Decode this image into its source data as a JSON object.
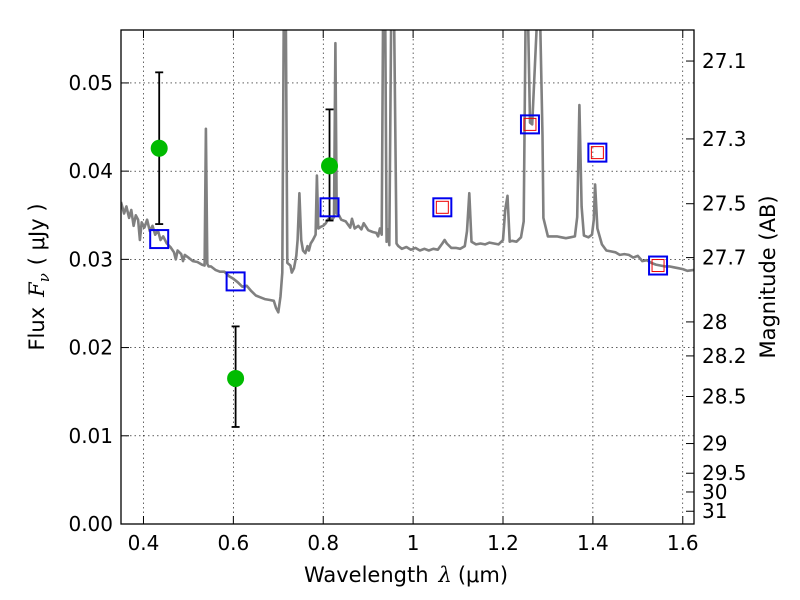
{
  "chart_data": {
    "type": "line",
    "xlabel": "Wavelength",
    "xlabel_symbol": "λ",
    "xlabel_unit": "(μm)",
    "ylabel": "Flux",
    "ylabel_symbol": "F",
    "ylabel_subscript": "ν",
    "ylabel_unit": "( μJy )",
    "y2label": "Magnitude (AB)",
    "xlim": [
      0.35,
      1.625
    ],
    "ylim": [
      0.0,
      0.056
    ],
    "grid": true,
    "x_ticks": [
      {
        "v": 0.4,
        "label": "0.4"
      },
      {
        "v": 0.6,
        "label": "0.6"
      },
      {
        "v": 0.8,
        "label": "0.8"
      },
      {
        "v": 1.0,
        "label": "1"
      },
      {
        "v": 1.2,
        "label": "1.2"
      },
      {
        "v": 1.4,
        "label": "1.4"
      },
      {
        "v": 1.6,
        "label": "1.6"
      }
    ],
    "y_ticks": [
      {
        "v": 0.0,
        "label": "0.00"
      },
      {
        "v": 0.01,
        "label": "0.01"
      },
      {
        "v": 0.02,
        "label": "0.02"
      },
      {
        "v": 0.03,
        "label": "0.03"
      },
      {
        "v": 0.04,
        "label": "0.04"
      },
      {
        "v": 0.05,
        "label": "0.05"
      }
    ],
    "mag_ticks": [
      {
        "mag": 27.1,
        "label": "27.1"
      },
      {
        "mag": 27.3,
        "label": "27.3"
      },
      {
        "mag": 27.5,
        "label": "27.5"
      },
      {
        "mag": 27.7,
        "label": "27.7"
      },
      {
        "mag": 28.0,
        "label": "28"
      },
      {
        "mag": 28.2,
        "label": "28.2"
      },
      {
        "mag": 28.5,
        "label": "28.5"
      },
      {
        "mag": 29.0,
        "label": "29"
      },
      {
        "mag": 29.5,
        "label": "29.5"
      },
      {
        "mag": 30.0,
        "label": "30"
      },
      {
        "mag": 31.0,
        "label": "31"
      }
    ],
    "model_spectrum": {
      "color": "#808080",
      "points": [
        [
          0.35,
          0.0365
        ],
        [
          0.357,
          0.0352
        ],
        [
          0.362,
          0.036
        ],
        [
          0.368,
          0.0347
        ],
        [
          0.373,
          0.0356
        ],
        [
          0.378,
          0.0338
        ],
        [
          0.383,
          0.035
        ],
        [
          0.388,
          0.0345
        ],
        [
          0.392,
          0.0322
        ],
        [
          0.396,
          0.0342
        ],
        [
          0.402,
          0.0336
        ],
        [
          0.408,
          0.0345
        ],
        [
          0.414,
          0.0332
        ],
        [
          0.42,
          0.0338
        ],
        [
          0.426,
          0.0328
        ],
        [
          0.432,
          0.0333
        ],
        [
          0.438,
          0.0322
        ],
        [
          0.444,
          0.0326
        ],
        [
          0.452,
          0.0318
        ],
        [
          0.46,
          0.0314
        ],
        [
          0.468,
          0.0308
        ],
        [
          0.472,
          0.03
        ],
        [
          0.476,
          0.031
        ],
        [
          0.484,
          0.0306
        ],
        [
          0.488,
          0.0298
        ],
        [
          0.492,
          0.0305
        ],
        [
          0.5,
          0.0302
        ],
        [
          0.51,
          0.0298
        ],
        [
          0.52,
          0.0297
        ],
        [
          0.53,
          0.0294
        ],
        [
          0.536,
          0.0293
        ],
        [
          0.539,
          0.0448
        ],
        [
          0.542,
          0.0295
        ],
        [
          0.545,
          0.0292
        ],
        [
          0.55,
          0.0292
        ],
        [
          0.56,
          0.0288
        ],
        [
          0.57,
          0.0286
        ],
        [
          0.58,
          0.0286
        ],
        [
          0.59,
          0.0281
        ],
        [
          0.6,
          0.0278
        ],
        [
          0.61,
          0.0274
        ],
        [
          0.62,
          0.0269
        ],
        [
          0.63,
          0.027
        ],
        [
          0.64,
          0.0264
        ],
        [
          0.65,
          0.0259
        ],
        [
          0.66,
          0.0257
        ],
        [
          0.67,
          0.0255
        ],
        [
          0.68,
          0.0254
        ],
        [
          0.69,
          0.0253
        ],
        [
          0.695,
          0.0245
        ],
        [
          0.7,
          0.024
        ],
        [
          0.705,
          0.0258
        ],
        [
          0.709,
          0.0285
        ],
        [
          0.712,
          0.0564
        ],
        [
          0.717,
          0.0564
        ],
        [
          0.72,
          0.0296
        ],
        [
          0.727,
          0.0293
        ],
        [
          0.73,
          0.0285
        ],
        [
          0.735,
          0.029
        ],
        [
          0.74,
          0.0304
        ],
        [
          0.743,
          0.0322
        ],
        [
          0.747,
          0.0375
        ],
        [
          0.751,
          0.0322
        ],
        [
          0.755,
          0.031
        ],
        [
          0.76,
          0.0307
        ],
        [
          0.765,
          0.0315
        ],
        [
          0.768,
          0.031
        ],
        [
          0.772,
          0.0318
        ],
        [
          0.777,
          0.0322
        ],
        [
          0.783,
          0.0328
        ],
        [
          0.786,
          0.0395
        ],
        [
          0.789,
          0.0335
        ],
        [
          0.795,
          0.0337
        ],
        [
          0.8,
          0.0338
        ],
        [
          0.806,
          0.0341
        ],
        [
          0.81,
          0.0345
        ],
        [
          0.815,
          0.0347
        ],
        [
          0.82,
          0.0345
        ],
        [
          0.824,
          0.0348
        ],
        [
          0.827,
          0.0545
        ],
        [
          0.83,
          0.0352
        ],
        [
          0.835,
          0.035
        ],
        [
          0.84,
          0.0345
        ],
        [
          0.85,
          0.0343
        ],
        [
          0.86,
          0.0336
        ],
        [
          0.864,
          0.0346
        ],
        [
          0.87,
          0.0335
        ],
        [
          0.878,
          0.0338
        ],
        [
          0.885,
          0.0334
        ],
        [
          0.89,
          0.0341
        ],
        [
          0.9,
          0.0333
        ],
        [
          0.91,
          0.0331
        ],
        [
          0.918,
          0.033
        ],
        [
          0.922,
          0.0326
        ],
        [
          0.926,
          0.0335
        ],
        [
          0.93,
          0.0328
        ],
        [
          0.933,
          0.0564
        ],
        [
          0.938,
          0.0564
        ],
        [
          0.941,
          0.032
        ],
        [
          0.944,
          0.0334
        ],
        [
          0.947,
          0.0316
        ],
        [
          0.951,
          0.0564
        ],
        [
          0.958,
          0.0564
        ],
        [
          0.963,
          0.0318
        ],
        [
          0.967,
          0.0315
        ],
        [
          0.975,
          0.0312
        ],
        [
          0.985,
          0.0314
        ],
        [
          0.995,
          0.0311
        ],
        [
          1.005,
          0.0313
        ],
        [
          1.015,
          0.031
        ],
        [
          1.025,
          0.0312
        ],
        [
          1.035,
          0.031
        ],
        [
          1.045,
          0.0312
        ],
        [
          1.055,
          0.0311
        ],
        [
          1.065,
          0.0318
        ],
        [
          1.07,
          0.0322
        ],
        [
          1.075,
          0.0318
        ],
        [
          1.085,
          0.0313
        ],
        [
          1.095,
          0.0313
        ],
        [
          1.105,
          0.0312
        ],
        [
          1.115,
          0.0315
        ],
        [
          1.12,
          0.0332
        ],
        [
          1.125,
          0.0375
        ],
        [
          1.13,
          0.032
        ],
        [
          1.14,
          0.0317
        ],
        [
          1.15,
          0.0318
        ],
        [
          1.16,
          0.0317
        ],
        [
          1.17,
          0.0319
        ],
        [
          1.18,
          0.0318
        ],
        [
          1.19,
          0.0317
        ],
        [
          1.2,
          0.0322
        ],
        [
          1.205,
          0.0356
        ],
        [
          1.21,
          0.0372
        ],
        [
          1.215,
          0.032
        ],
        [
          1.22,
          0.0321
        ],
        [
          1.23,
          0.032
        ],
        [
          1.24,
          0.0325
        ],
        [
          1.246,
          0.0343
        ],
        [
          1.25,
          0.0564
        ],
        [
          1.256,
          0.0564
        ],
        [
          1.26,
          0.0455
        ],
        [
          1.265,
          0.0453
        ],
        [
          1.275,
          0.0564
        ],
        [
          1.283,
          0.0564
        ],
        [
          1.288,
          0.044
        ],
        [
          1.29,
          0.0347
        ],
        [
          1.3,
          0.0326
        ],
        [
          1.31,
          0.0326
        ],
        [
          1.32,
          0.0326
        ],
        [
          1.33,
          0.0325
        ],
        [
          1.34,
          0.0324
        ],
        [
          1.35,
          0.0325
        ],
        [
          1.36,
          0.0326
        ],
        [
          1.365,
          0.0348
        ],
        [
          1.37,
          0.0475
        ],
        [
          1.375,
          0.036
        ],
        [
          1.38,
          0.0327
        ],
        [
          1.39,
          0.0325
        ],
        [
          1.398,
          0.0328
        ],
        [
          1.402,
          0.0345
        ],
        [
          1.405,
          0.0385
        ],
        [
          1.41,
          0.0335
        ],
        [
          1.42,
          0.0317
        ],
        [
          1.43,
          0.031
        ],
        [
          1.44,
          0.0309
        ],
        [
          1.45,
          0.0308
        ],
        [
          1.46,
          0.0305
        ],
        [
          1.47,
          0.0306
        ],
        [
          1.48,
          0.0305
        ],
        [
          1.49,
          0.0302
        ],
        [
          1.5,
          0.0304
        ],
        [
          1.51,
          0.0298
        ],
        [
          1.52,
          0.0299
        ],
        [
          1.53,
          0.0296
        ],
        [
          1.54,
          0.0294
        ],
        [
          1.55,
          0.0293
        ],
        [
          1.56,
          0.0292
        ],
        [
          1.57,
          0.0292
        ],
        [
          1.58,
          0.0291
        ],
        [
          1.59,
          0.029
        ],
        [
          1.6,
          0.0289
        ],
        [
          1.61,
          0.0287
        ],
        [
          1.625,
          0.0288
        ]
      ]
    },
    "observed": {
      "color": "#00bb00",
      "points": [
        {
          "x": 0.435,
          "y": 0.0426,
          "lo": 0.034,
          "hi": 0.0512
        },
        {
          "x": 0.605,
          "y": 0.0165,
          "lo": 0.011,
          "hi": 0.0224
        },
        {
          "x": 0.814,
          "y": 0.0406,
          "lo": 0.0344,
          "hi": 0.047
        }
      ]
    },
    "model_photometry": {
      "color": "#0000ee",
      "points": [
        {
          "x": 0.435,
          "y": 0.0323
        },
        {
          "x": 0.605,
          "y": 0.0275
        },
        {
          "x": 0.814,
          "y": 0.0359
        },
        {
          "x": 1.065,
          "y": 0.0359
        },
        {
          "x": 1.26,
          "y": 0.0453
        },
        {
          "x": 1.41,
          "y": 0.0421
        },
        {
          "x": 1.545,
          "y": 0.0293
        }
      ]
    },
    "nir_photometry": {
      "color": "#ee0000",
      "points": [
        {
          "x": 1.065,
          "y": 0.0359
        },
        {
          "x": 1.26,
          "y": 0.0453
        },
        {
          "x": 1.41,
          "y": 0.0421
        },
        {
          "x": 1.545,
          "y": 0.0293
        }
      ]
    }
  }
}
